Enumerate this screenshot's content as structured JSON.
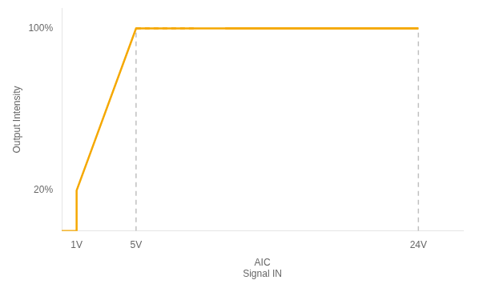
{
  "chart_data": {
    "type": "line",
    "xlabel": "AIC\nSignal IN",
    "ylabel": "Output Intensity",
    "xlim": [
      0,
      27
    ],
    "ylim": [
      0,
      110
    ],
    "xticks": [
      {
        "value": 1,
        "label": "1V"
      },
      {
        "value": 5,
        "label": "5V"
      },
      {
        "value": 24,
        "label": "24V"
      }
    ],
    "yticks": [
      {
        "value": 20,
        "label": "20%"
      },
      {
        "value": 100,
        "label": "100%"
      }
    ],
    "grid": false,
    "series": [
      {
        "color": "#C0C0C0",
        "line_style": "dashed",
        "x": [
          5,
          5
        ],
        "values": [
          0,
          100
        ]
      },
      {
        "color": "#C0C0C0",
        "line_style": "dashed",
        "x": [
          24,
          24
        ],
        "values": [
          0,
          100
        ]
      },
      {
        "color": "#F5A800",
        "line_style": "solid",
        "x": [
          0,
          1,
          1,
          5,
          5,
          24
        ],
        "values": [
          0,
          0,
          20,
          100,
          100,
          100
        ]
      },
      {
        "color": "#F5A800",
        "line_style": "dashed",
        "x": [
          5,
          9
        ],
        "values": [
          100,
          100
        ]
      },
      {
        "color": "#F5A800",
        "line_style": "solid",
        "x": [
          11,
          24
        ],
        "values": [
          100,
          100
        ]
      }
    ]
  }
}
